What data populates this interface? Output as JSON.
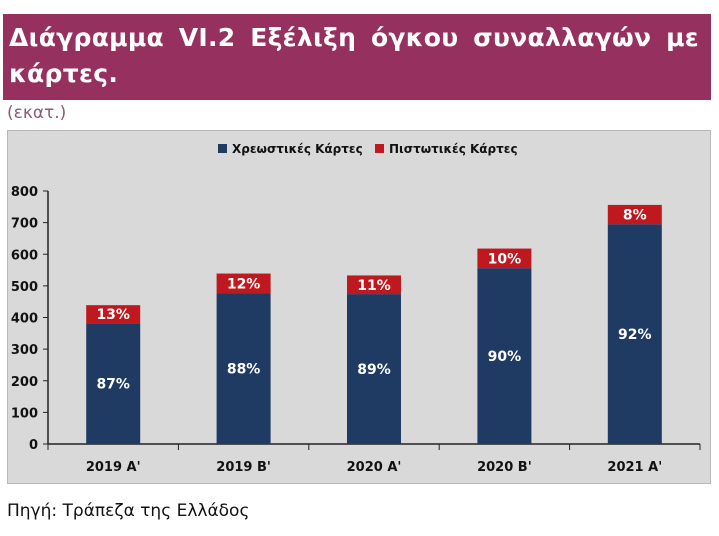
{
  "title": "Διάγραμμα VI.2 Εξέλιξη όγκου συναλλαγών με κάρτες.",
  "unit_label": "(εκατ.)",
  "source": "Πηγή: Τράπεζα της Ελλάδος",
  "chart_data": {
    "type": "bar",
    "stacked": true,
    "categories": [
      "2019 A'",
      "2019 B'",
      "2020 A'",
      "2020 B'",
      "2021 A'"
    ],
    "series": [
      {
        "name": "Χρεωστικές Κάρτες",
        "color": "#1f3a63",
        "values": [
          382,
          476,
          474,
          556,
          695
        ],
        "labels": [
          "87%",
          "88%",
          "89%",
          "90%",
          "92%"
        ]
      },
      {
        "name": "Πιστωτικές Κάρτες",
        "color": "#c0181f",
        "values": [
          57,
          63,
          59,
          62,
          61
        ],
        "labels": [
          "13%",
          "12%",
          "11%",
          "10%",
          "8%"
        ]
      }
    ],
    "yticks": [
      0,
      100,
      200,
      300,
      400,
      500,
      600,
      700,
      800
    ],
    "ylim": [
      0,
      800
    ],
    "grid": false,
    "legend": "top-center"
  }
}
